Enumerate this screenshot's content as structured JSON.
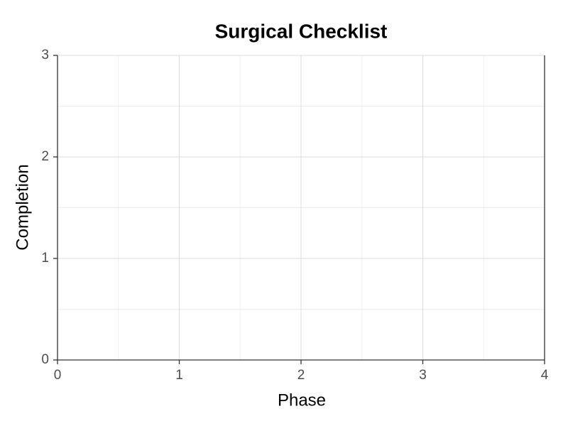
{
  "chart_data": {
    "type": "line",
    "title": "Surgical Checklist",
    "x_label": "Phase",
    "y_label": "Completion",
    "xlim": [
      0,
      4
    ],
    "xticks": [
      0,
      1,
      2,
      3,
      4
    ],
    "ylim": [
      0,
      3
    ],
    "yticks": [
      0,
      1,
      2,
      3
    ],
    "grid": true,
    "series": []
  }
}
